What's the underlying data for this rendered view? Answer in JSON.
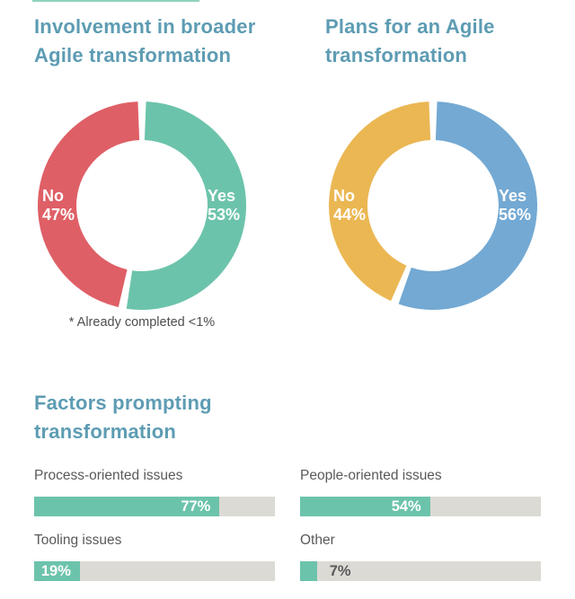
{
  "colors": {
    "heading": "#5d9cb3",
    "donut_teal": "#6cc3ab",
    "donut_red": "#df5f66",
    "donut_blue": "#73a9d3",
    "donut_orange": "#ebb753",
    "bar_fill": "#6cc3ab",
    "bar_track": "#dcdad4",
    "body_text": "#58595b"
  },
  "chart_data": [
    {
      "type": "donut",
      "title": "Involvement in broader\nAgile transformation",
      "footnote": "* Already completed <1%",
      "slices": [
        {
          "label": "Yes",
          "value": 53,
          "value_label": "53%",
          "color": "#6cc3ab"
        },
        {
          "label": "No",
          "value": 47,
          "value_label": "47%",
          "color": "#df5f66"
        }
      ]
    },
    {
      "type": "donut",
      "title": "Plans for an Agile\ntransformation",
      "slices": [
        {
          "label": "Yes",
          "value": 56,
          "value_label": "56%",
          "color": "#73a9d3"
        },
        {
          "label": "No",
          "value": 44,
          "value_label": "44%",
          "color": "#ebb753"
        }
      ]
    },
    {
      "type": "bar",
      "title": "Factors prompting\ntransformation",
      "categories": [
        "Process-oriented issues",
        "People-oriented issues",
        "Tooling issues",
        "Other"
      ],
      "values": [
        77,
        54,
        19,
        7
      ],
      "value_labels": [
        "77%",
        "54%",
        "19%",
        "7%"
      ],
      "xlim": [
        0,
        100
      ],
      "bar_color": "#6cc3ab",
      "track_color": "#dcdad4"
    }
  ]
}
